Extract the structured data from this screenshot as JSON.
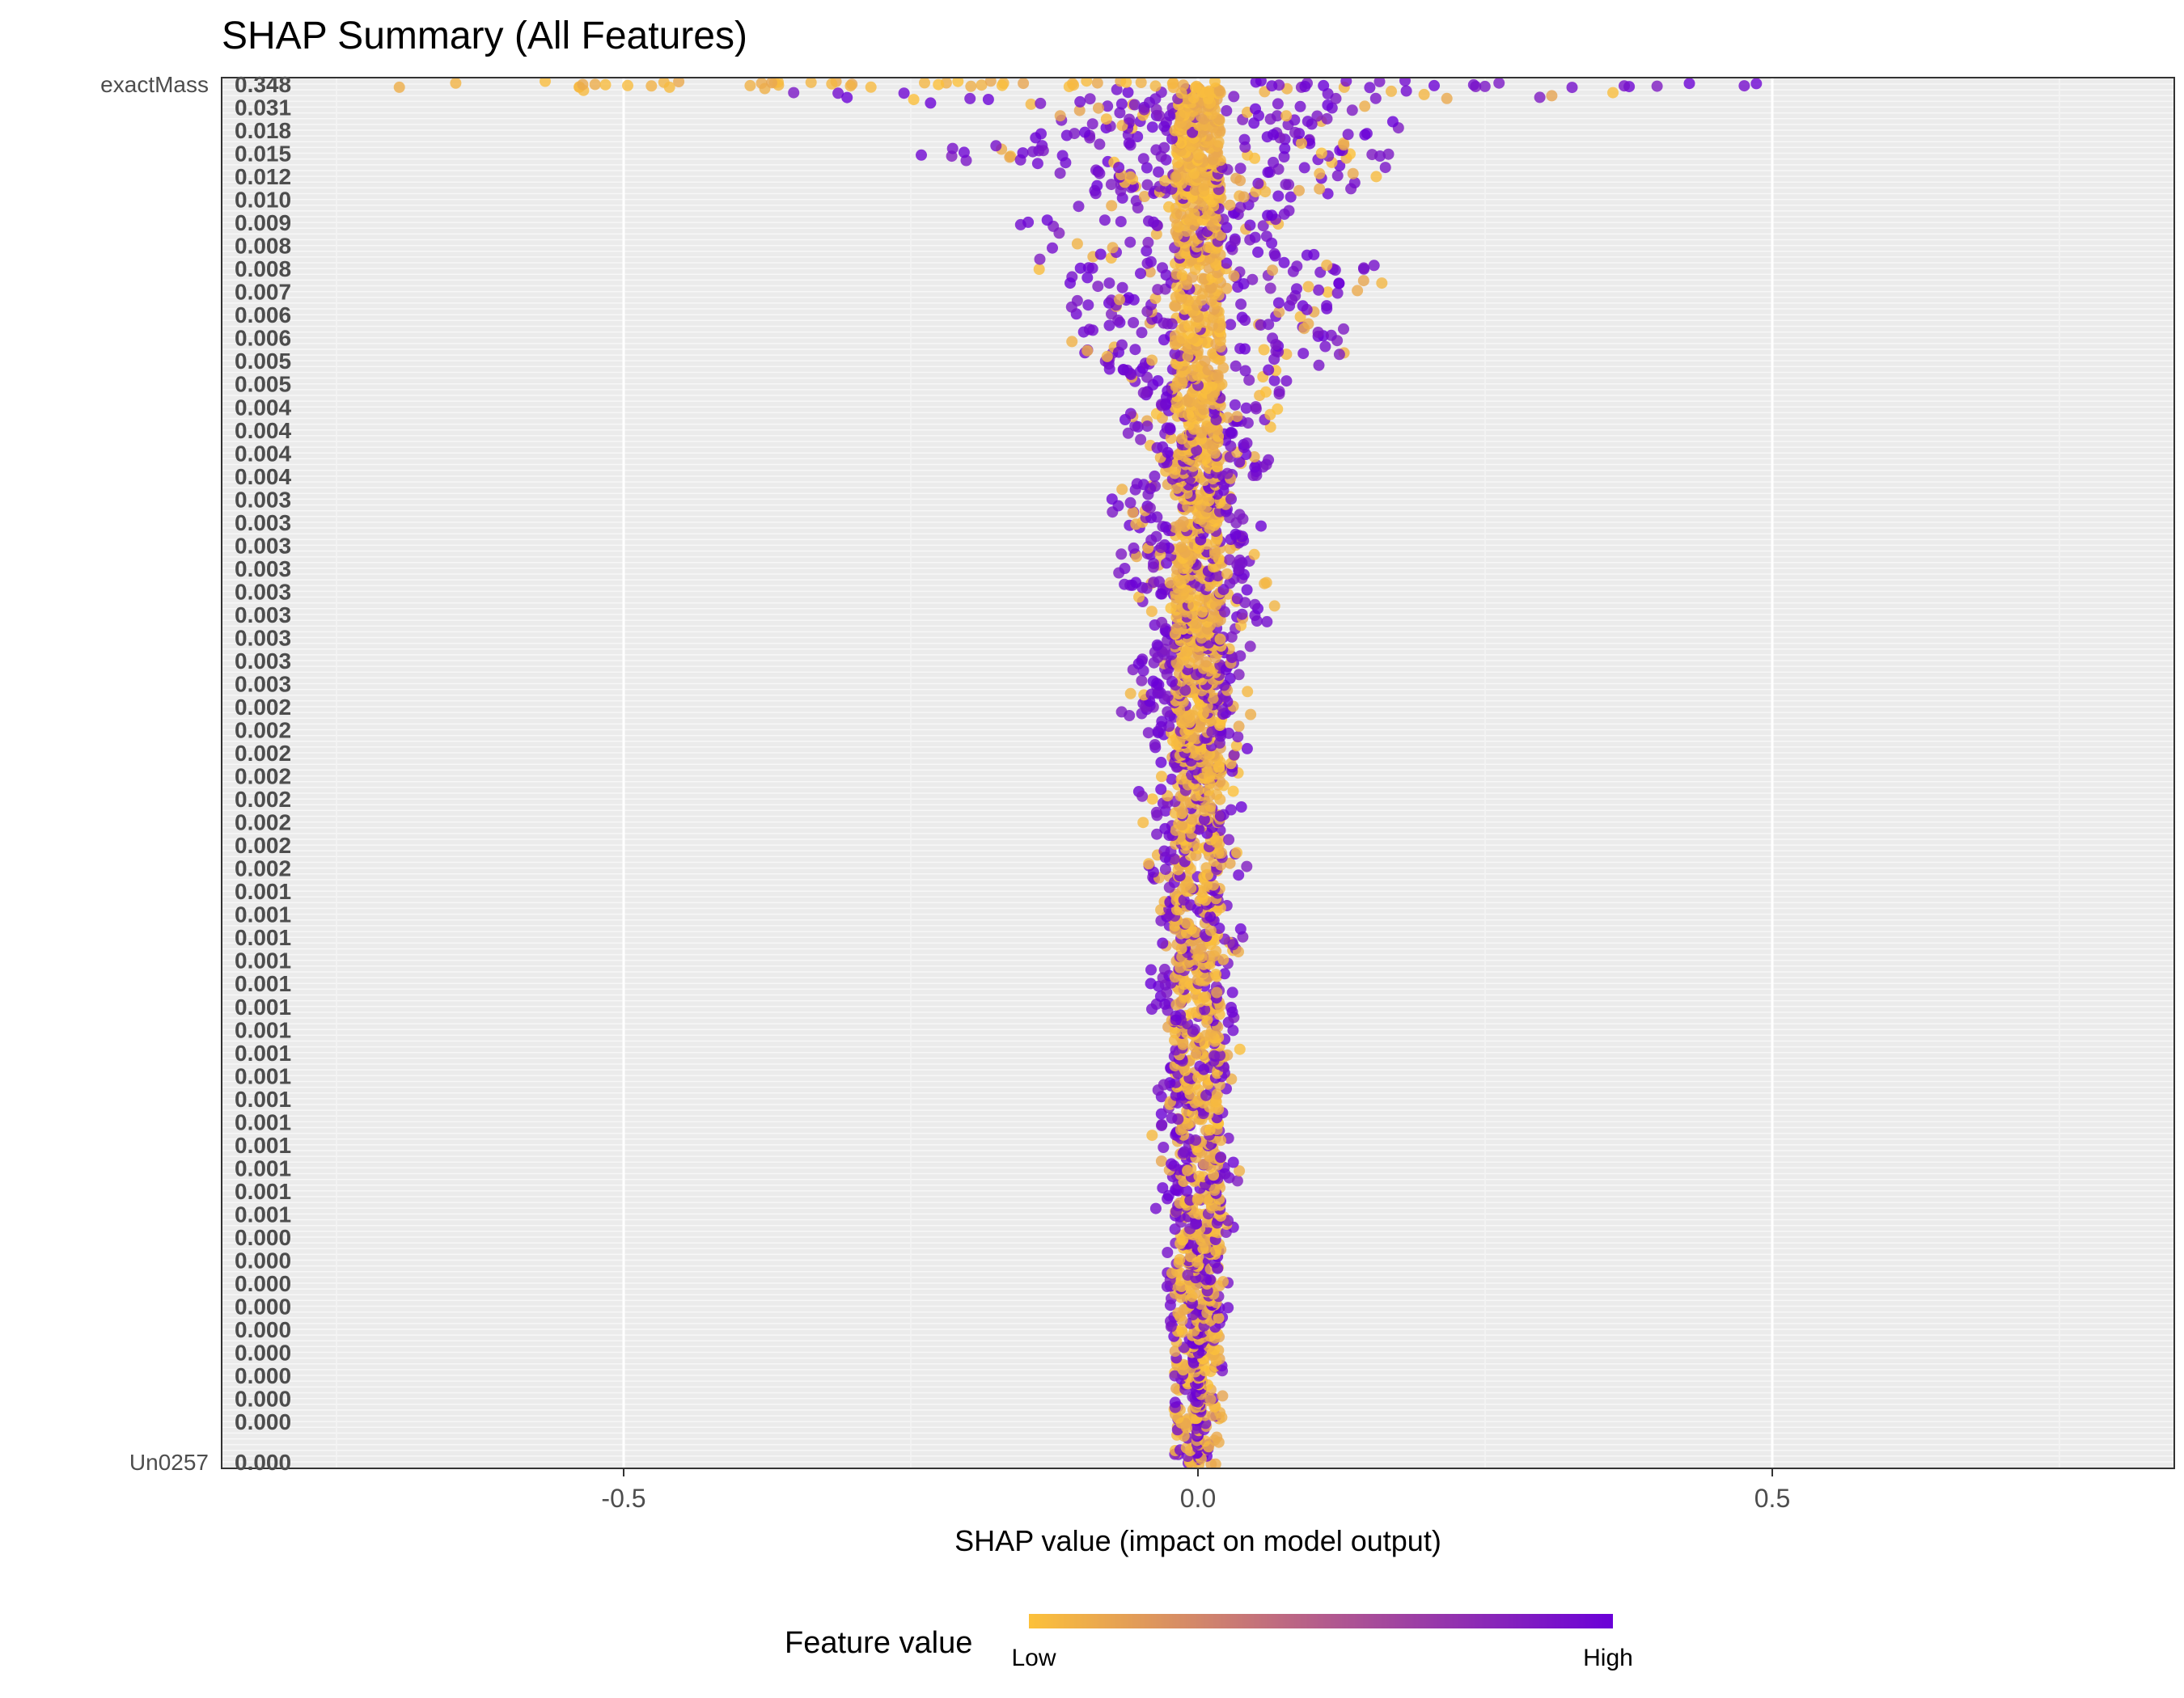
{
  "chart_data": {
    "type": "scatter",
    "title": "SHAP Summary (All Features)",
    "xlabel": "SHAP value (impact on model output)",
    "ylabel": "",
    "xlim": [
      -0.85,
      0.85
    ],
    "x_ticks": [
      -0.5,
      0.0,
      0.5
    ],
    "x_tick_labels": [
      "-0.5",
      "0.0",
      "0.5"
    ],
    "grid": true,
    "legend": {
      "title": "Feature value",
      "low_label": "Low",
      "high_label": "High",
      "low_color": "#fcc13a",
      "high_color": "#6a00d8",
      "position": "bottom"
    },
    "top_feature": "exactMass",
    "bottom_feature": "Un0257",
    "feature_count": 240,
    "importance_labels": [
      "0.348",
      "0.031",
      "0.018",
      "0.015",
      "0.012",
      "0.010",
      "0.009",
      "0.008",
      "0.008",
      "0.007",
      "0.006",
      "0.006",
      "0.005",
      "0.005",
      "0.004",
      "0.004",
      "0.004",
      "0.004",
      "0.003",
      "0.003",
      "0.003",
      "0.003",
      "0.003",
      "0.003",
      "0.003",
      "0.003",
      "0.003",
      "0.002",
      "0.002",
      "0.002",
      "0.002",
      "0.002",
      "0.002",
      "0.002",
      "0.002",
      "0.001",
      "0.001",
      "0.001",
      "0.001",
      "0.001",
      "0.001",
      "0.001",
      "0.001",
      "0.001",
      "0.001",
      "0.001",
      "0.001",
      "0.001",
      "0.001",
      "0.001",
      "0.000",
      "0.000",
      "0.000",
      "0.000",
      "0.000",
      "0.000",
      "0.000",
      "0.000",
      "0.000",
      "0.000"
    ],
    "importance_rows": [
      0,
      4,
      8,
      12,
      16,
      20,
      24,
      28,
      32,
      36,
      40,
      44,
      48,
      52,
      56,
      60,
      64,
      68,
      72,
      76,
      80,
      84,
      88,
      92,
      96,
      100,
      104,
      108,
      112,
      116,
      120,
      124,
      128,
      132,
      136,
      140,
      144,
      148,
      152,
      156,
      160,
      164,
      168,
      172,
      176,
      180,
      184,
      188,
      192,
      196,
      200,
      204,
      208,
      212,
      216,
      220,
      224,
      228,
      232,
      239
    ],
    "feature_spread": [
      {
        "row": 0,
        "min": -0.71,
        "max": 0.49
      },
      {
        "row": 4,
        "min": -0.1,
        "max": 0.15
      },
      {
        "row": 8,
        "min": -0.11,
        "max": 0.18
      },
      {
        "row": 12,
        "min": -0.25,
        "max": 0.17
      },
      {
        "row": 16,
        "min": -0.09,
        "max": 0.16
      },
      {
        "row": 20,
        "min": -0.1,
        "max": 0.09
      },
      {
        "row": 24,
        "min": -0.17,
        "max": 0.07
      },
      {
        "row": 28,
        "min": -0.14,
        "max": 0.06
      },
      {
        "row": 32,
        "min": -0.12,
        "max": 0.16
      },
      {
        "row": 36,
        "min": -0.1,
        "max": 0.14
      },
      {
        "row": 40,
        "min": -0.1,
        "max": 0.1
      },
      {
        "row": 44,
        "min": -0.1,
        "max": 0.12
      },
      {
        "row": 48,
        "min": -0.1,
        "max": 0.13
      },
      {
        "row": 52,
        "min": -0.04,
        "max": 0.08
      },
      {
        "row": 56,
        "min": -0.06,
        "max": 0.07
      },
      {
        "row": 60,
        "min": -0.05,
        "max": 0.06
      },
      {
        "row": 64,
        "min": -0.04,
        "max": 0.05
      },
      {
        "row": 68,
        "min": -0.04,
        "max": 0.05
      },
      {
        "row": 72,
        "min": -0.07,
        "max": 0.03
      },
      {
        "row": 76,
        "min": -0.05,
        "max": 0.04
      },
      {
        "row": 80,
        "min": -0.05,
        "max": 0.04
      },
      {
        "row": 84,
        "min": -0.06,
        "max": 0.05
      },
      {
        "row": 88,
        "min": -0.06,
        "max": 0.04
      },
      {
        "row": 92,
        "min": -0.03,
        "max": 0.06
      },
      {
        "row": 96,
        "min": -0.03,
        "max": 0.03
      },
      {
        "row": 100,
        "min": -0.05,
        "max": 0.03
      },
      {
        "row": 104,
        "min": -0.05,
        "max": 0.03
      },
      {
        "row": 108,
        "min": -0.05,
        "max": 0.03
      },
      {
        "row": 112,
        "min": -0.05,
        "max": 0.02
      },
      {
        "row": 116,
        "min": -0.02,
        "max": 0.04
      },
      {
        "row": 120,
        "min": -0.02,
        "max": 0.02
      },
      {
        "row": 124,
        "min": -0.04,
        "max": 0.02
      },
      {
        "row": 128,
        "min": -0.04,
        "max": 0.02
      },
      {
        "row": 132,
        "min": -0.04,
        "max": 0.03
      },
      {
        "row": 136,
        "min": -0.03,
        "max": 0.03
      },
      {
        "row": 140,
        "min": -0.03,
        "max": 0.02
      },
      {
        "row": 144,
        "min": -0.03,
        "max": 0.02
      },
      {
        "row": 148,
        "min": -0.03,
        "max": 0.03
      },
      {
        "row": 152,
        "min": -0.03,
        "max": 0.03
      },
      {
        "row": 156,
        "min": -0.03,
        "max": 0.02
      },
      {
        "row": 160,
        "min": -0.03,
        "max": 0.02
      },
      {
        "row": 164,
        "min": -0.02,
        "max": 0.02
      },
      {
        "row": 168,
        "min": -0.02,
        "max": 0.02
      },
      {
        "row": 172,
        "min": -0.02,
        "max": 0.02
      },
      {
        "row": 176,
        "min": -0.02,
        "max": 0.02
      },
      {
        "row": 180,
        "min": -0.03,
        "max": 0.02
      },
      {
        "row": 184,
        "min": -0.02,
        "max": 0.02
      },
      {
        "row": 188,
        "min": -0.02,
        "max": 0.02
      },
      {
        "row": 192,
        "min": -0.02,
        "max": 0.02
      },
      {
        "row": 196,
        "min": -0.02,
        "max": 0.02
      },
      {
        "row": 200,
        "min": -0.01,
        "max": 0.01
      },
      {
        "row": 204,
        "min": -0.01,
        "max": 0.01
      },
      {
        "row": 208,
        "min": -0.01,
        "max": 0.01
      },
      {
        "row": 212,
        "min": -0.01,
        "max": 0.01
      },
      {
        "row": 216,
        "min": -0.005,
        "max": 0.005
      },
      {
        "row": 220,
        "min": -0.005,
        "max": 0.005
      },
      {
        "row": 224,
        "min": -0.003,
        "max": 0.003
      },
      {
        "row": 228,
        "min": -0.003,
        "max": 0.003
      },
      {
        "row": 232,
        "min": -0.002,
        "max": 0.002
      },
      {
        "row": 239,
        "min": -0.001,
        "max": 0.001
      }
    ]
  }
}
